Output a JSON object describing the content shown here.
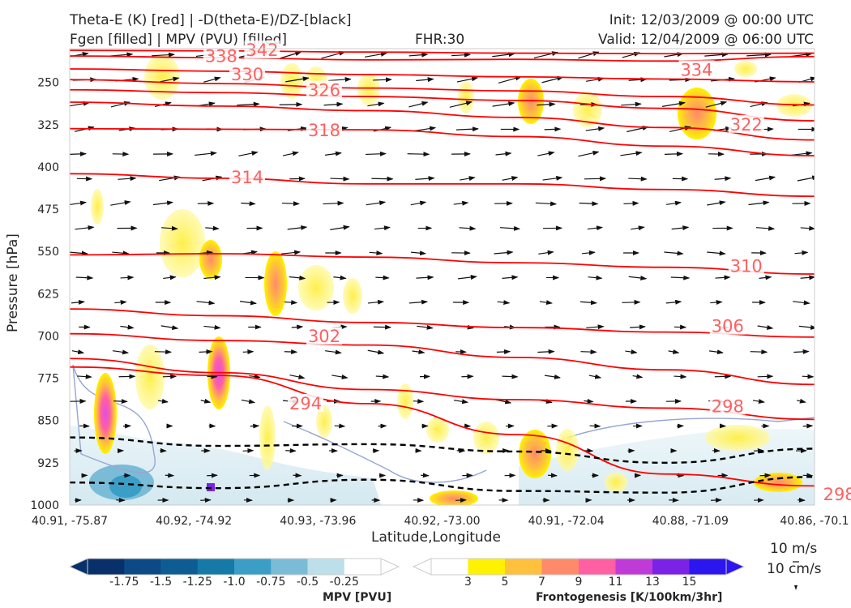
{
  "header": {
    "line1_left": "Theta-E (K) [red] | -D(theta-E)/DZ-[black]",
    "line2_left": "Fgen [filled] | MPV (PVU) [filled]",
    "fhr": "FHR:30",
    "init": "Init: 12/03/2009 @ 00:00 UTC",
    "valid": "Valid: 12/04/2009 @ 06:00 UTC"
  },
  "chart_data": {
    "type": "cross-section",
    "xlabel": "Latitude,Longitude",
    "ylabel": "Pressure [hPa]",
    "x_ticks": [
      "40.91, -75.87",
      "40.92, -74.92",
      "40.93, -73.96",
      "40.92, -73.00",
      "40.91, -72.04",
      "40.88, -71.09",
      "40.86, -70.1"
    ],
    "y_ticks": [
      250,
      325,
      400,
      475,
      550,
      625,
      700,
      775,
      850,
      925,
      1000
    ],
    "ylim": [
      1000,
      190
    ],
    "theta_e_contours": [
      {
        "label": "342",
        "p": [
          193,
          194,
          196,
          198,
          199,
          198
        ]
      },
      {
        "label": "338",
        "p": [
          203,
          206,
          210,
          209,
          212,
          204
        ]
      },
      {
        "label": "334",
        "p": [
          226,
          230,
          236,
          240,
          244,
          249
        ]
      },
      {
        "label": "330",
        "p": [
          245,
          252,
          260,
          265,
          275,
          290
        ]
      },
      {
        "label": "326",
        "p": [
          263,
          268,
          275,
          282,
          296,
          318
        ]
      },
      {
        "label": "322",
        "p": [
          285,
          292,
          300,
          312,
          330,
          352
        ]
      },
      {
        "label": "318",
        "p": [
          332,
          333,
          334,
          346,
          363,
          380
        ]
      },
      {
        "label": "314",
        "p": [
          412,
          420,
          430,
          430,
          440,
          452
        ]
      },
      {
        "label": "310",
        "p": [
          556,
          554,
          560,
          570,
          578,
          590
        ]
      },
      {
        "label": "306",
        "p": [
          652,
          664,
          676,
          685,
          693,
          702
        ]
      },
      {
        "label": "302",
        "p": [
          696,
          708,
          716,
          738,
          760,
          786
        ]
      },
      {
        "label": "298",
        "p": [
          740,
          765,
          795,
          813,
          828,
          848
        ]
      },
      {
        "label": "294",
        "p": [
          755,
          770,
          820,
          875,
          945,
          966
        ]
      }
    ],
    "theta_e_labels": [
      {
        "text": "342",
        "x": 1.55,
        "p": 193
      },
      {
        "text": "338",
        "x": 1.22,
        "p": 204
      },
      {
        "text": "330",
        "x": 1.43,
        "p": 236
      },
      {
        "text": "326",
        "x": 2.05,
        "p": 264
      },
      {
        "text": "334",
        "x": 5.05,
        "p": 228
      },
      {
        "text": "322",
        "x": 5.45,
        "p": 325
      },
      {
        "text": "318",
        "x": 2.05,
        "p": 335
      },
      {
        "text": "314",
        "x": 1.43,
        "p": 419
      },
      {
        "text": "310",
        "x": 5.45,
        "p": 576
      },
      {
        "text": "306",
        "x": 5.3,
        "p": 683
      },
      {
        "text": "302",
        "x": 2.05,
        "p": 701
      },
      {
        "text": "294",
        "x": 1.9,
        "p": 820
      },
      {
        "text": "298",
        "x": 5.3,
        "p": 825
      },
      {
        "text": "298",
        "x": 6.2,
        "p": 981
      }
    ],
    "stability_dashed_contours": [
      {
        "label": "",
        "p": [
          880,
          895,
          892,
          905,
          925,
          900
        ]
      },
      {
        "label": "",
        "p": [
          960,
          970,
          955,
          975,
          978,
          950
        ]
      }
    ],
    "reference_vector": {
      "horizontal": "10 m/s",
      "vertical": "10 cm/s"
    }
  },
  "colorbars": {
    "mpv": {
      "title": "MPV [PVU]",
      "ticks": [
        "-1.75",
        "-1.5",
        "-1.25",
        "-1.0",
        "-0.75",
        "-0.5",
        "-0.25"
      ],
      "colors": [
        "#08306b",
        "#0c4a87",
        "#0d5d94",
        "#167aa8",
        "#3a9ec6",
        "#7abcd8",
        "#bcdfe9",
        "#ffffff"
      ]
    },
    "fgen": {
      "title": "Frontogenesis [K/100km/3hr]",
      "ticks": [
        "3",
        "5",
        "7",
        "9",
        "11",
        "13",
        "15"
      ],
      "colors": [
        "#ffffff",
        "#fff200",
        "#ffc03d",
        "#ff8a6a",
        "#ff5fa3",
        "#c03ad8",
        "#7a22e6",
        "#2b16f0"
      ]
    }
  },
  "colors": {
    "theta_e": "#ff0000",
    "theta_e_label": "#ff6060",
    "stability": "#000000",
    "mpv_contour": "#96a6d2"
  }
}
